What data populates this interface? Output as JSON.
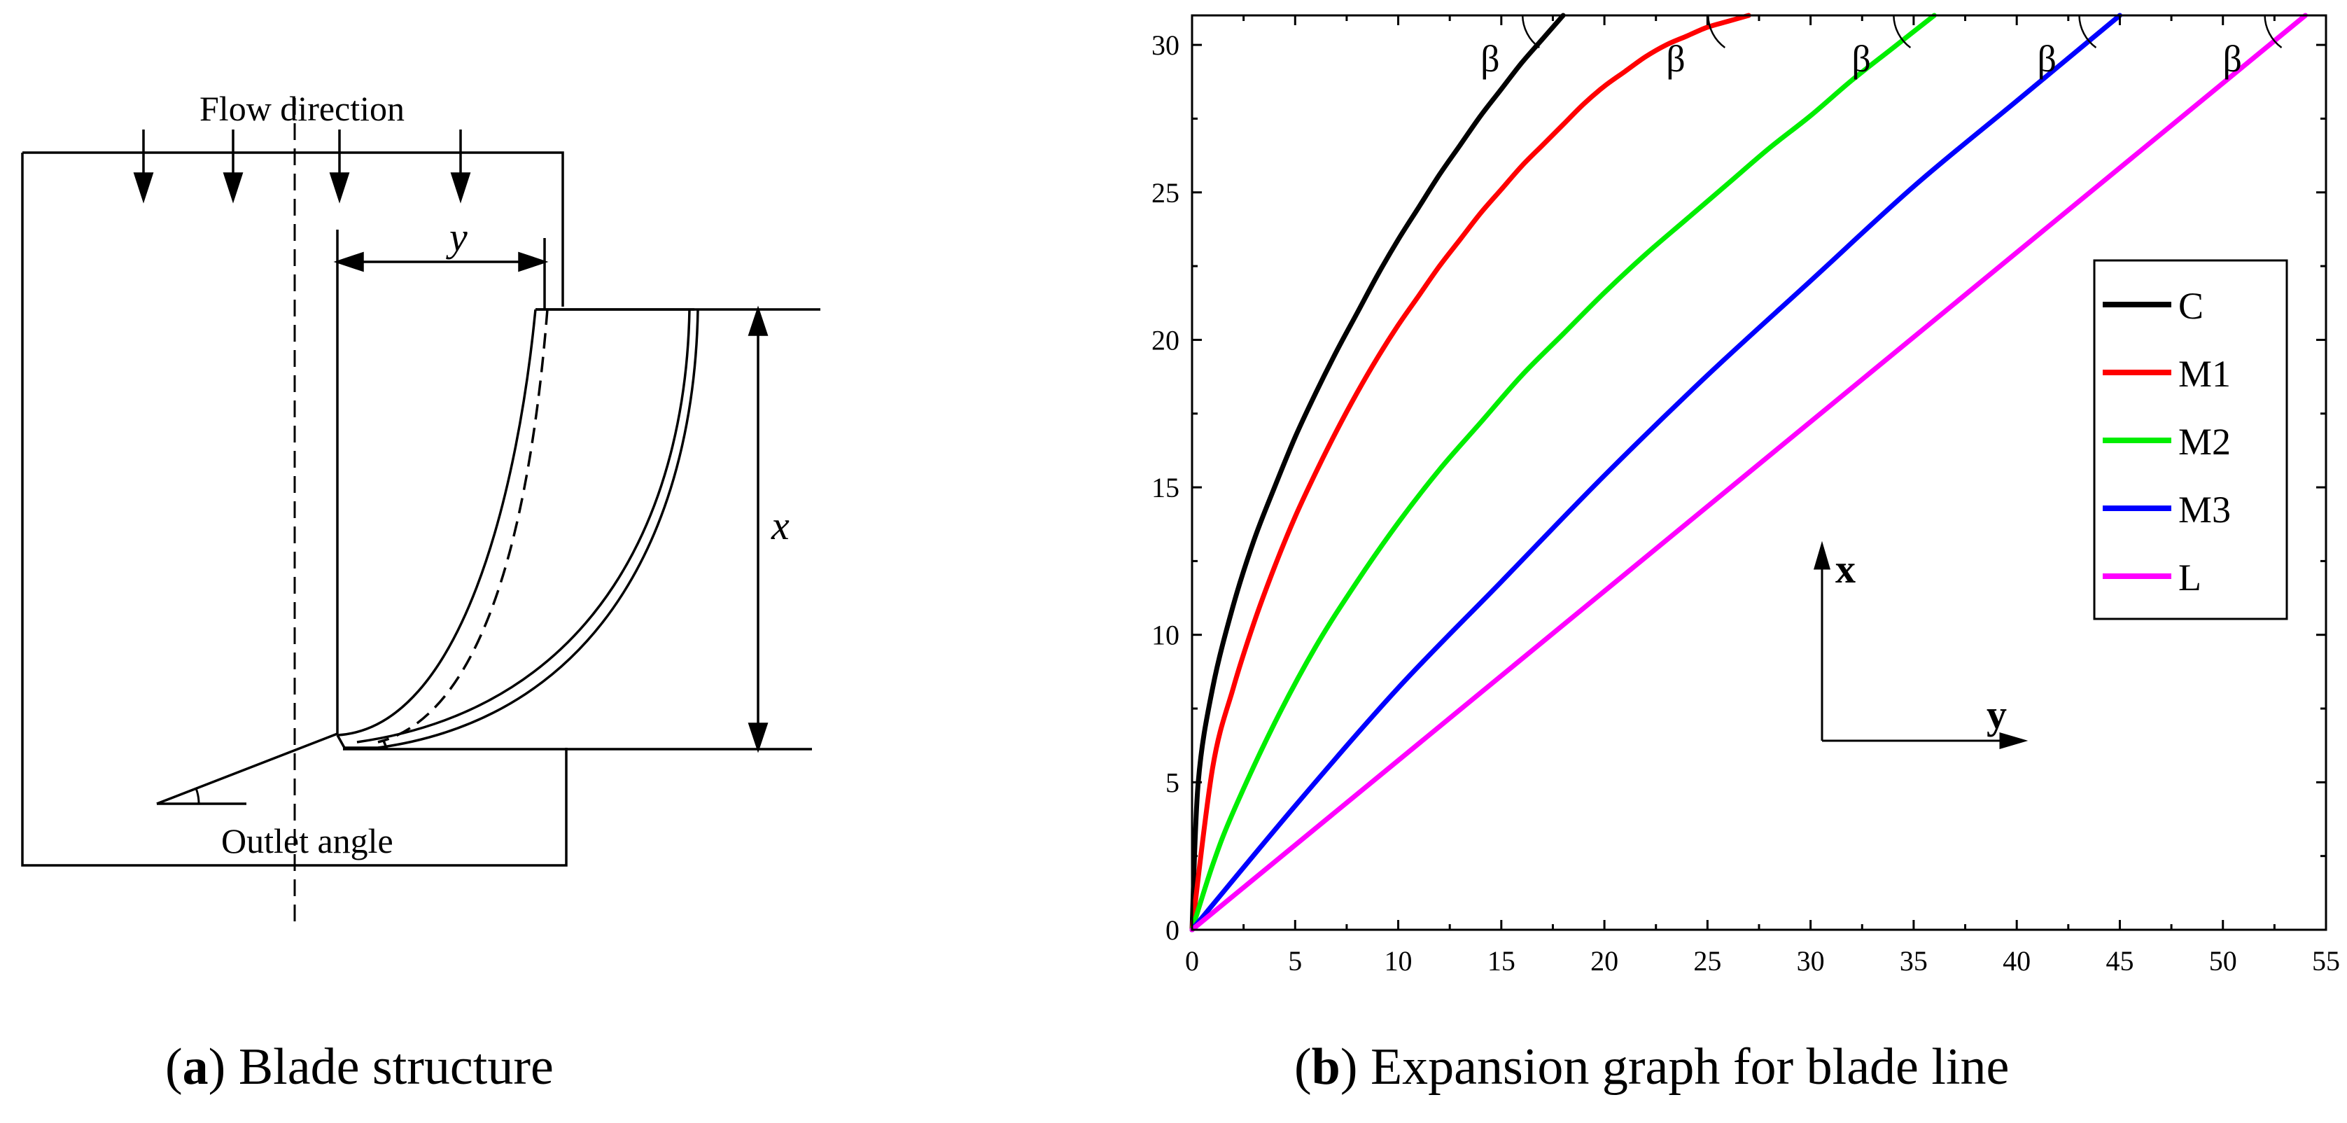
{
  "panel_a": {
    "flow_label": "Flow direction",
    "dim_y_label": "y",
    "dim_x_label": "x",
    "outlet_label": "Outlet angle",
    "caption_letter": "a",
    "caption_text": "Blade structure"
  },
  "panel_b": {
    "caption_letter": "b",
    "caption_text": "Expansion graph for blade line",
    "beta_symbol": "β",
    "axis_arrow_x": "x",
    "axis_arrow_y": "y"
  },
  "chart_data": {
    "type": "line",
    "title": "",
    "xlabel": "",
    "ylabel": "",
    "xlim": [
      0,
      55
    ],
    "ylim": [
      0,
      31
    ],
    "x_ticks": [
      0,
      5,
      10,
      15,
      20,
      25,
      30,
      35,
      40,
      45,
      50,
      55
    ],
    "y_ticks": [
      0,
      5,
      10,
      15,
      20,
      25,
      30
    ],
    "grid": false,
    "legend_position": "right",
    "series": [
      {
        "name": "C",
        "color": "#000000",
        "x": [
          0,
          0.3,
          1,
          2,
          3,
          4,
          5,
          6,
          7,
          8,
          9,
          10,
          11,
          12,
          13,
          14,
          15,
          16,
          17,
          18
        ],
        "y": [
          0,
          5,
          8.2,
          11,
          13.2,
          15,
          16.7,
          18.2,
          19.6,
          20.9,
          22.2,
          23.4,
          24.5,
          25.6,
          26.6,
          27.6,
          28.5,
          29.4,
          30.2,
          31
        ]
      },
      {
        "name": "M1",
        "color": "#ff0000",
        "x": [
          0,
          1,
          2,
          3,
          4,
          5,
          6,
          7,
          8,
          9,
          10,
          11,
          12,
          13,
          14,
          15,
          16,
          17,
          18,
          19,
          20,
          21,
          22,
          23,
          24,
          25,
          26,
          27
        ],
        "y": [
          0,
          5.5,
          8.2,
          10.4,
          12.3,
          14,
          15.5,
          16.9,
          18.2,
          19.4,
          20.5,
          21.5,
          22.5,
          23.4,
          24.3,
          25.1,
          25.9,
          26.6,
          27.3,
          28,
          28.6,
          29.1,
          29.6,
          30,
          30.3,
          30.6,
          30.8,
          31
        ]
      },
      {
        "name": "M2",
        "color": "#00ee00",
        "x": [
          0,
          1,
          2,
          4,
          6,
          8,
          10,
          12,
          14,
          16,
          18,
          20,
          22,
          24,
          26,
          28,
          30,
          32,
          34,
          36
        ],
        "y": [
          0,
          2.2,
          4,
          7,
          9.6,
          11.8,
          13.8,
          15.6,
          17.2,
          18.8,
          20.2,
          21.6,
          22.9,
          24.1,
          25.3,
          26.5,
          27.6,
          28.8,
          29.9,
          31
        ]
      },
      {
        "name": "M3",
        "color": "#0000ff",
        "x": [
          0,
          5,
          10,
          15,
          20,
          25,
          30,
          35,
          40,
          45
        ],
        "y": [
          0,
          4.2,
          8.2,
          11.8,
          15.4,
          18.8,
          22,
          25.2,
          28.1,
          31
        ]
      },
      {
        "name": "L",
        "color": "#ff00ff",
        "x": [
          0,
          54
        ],
        "y": [
          0,
          31
        ]
      }
    ]
  }
}
